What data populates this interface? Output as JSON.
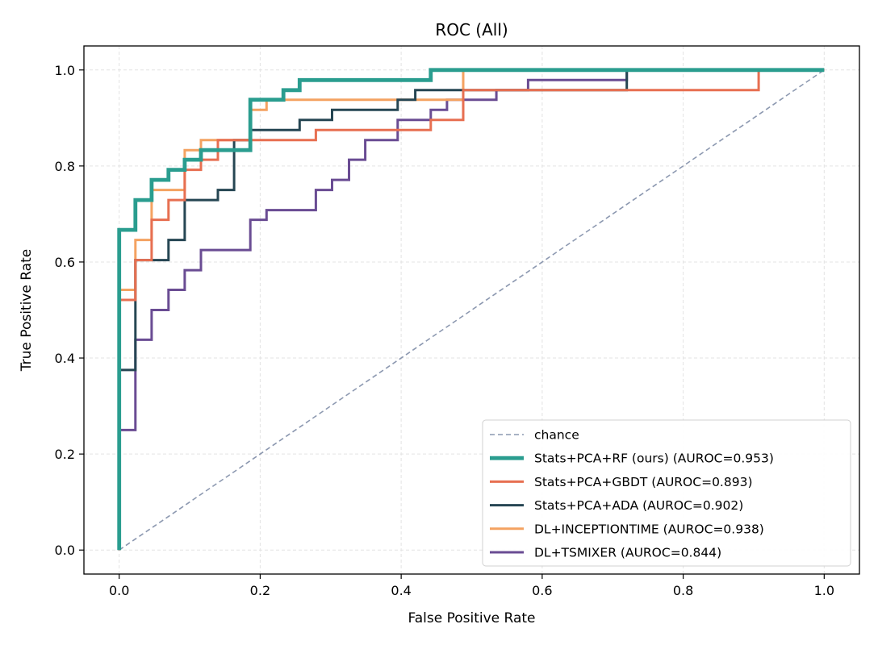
{
  "chart_data": {
    "type": "line",
    "title": "ROC (All)",
    "xlabel": "False Positive Rate",
    "ylabel": "True Positive Rate",
    "xlim": [
      -0.05,
      1.05
    ],
    "ylim": [
      -0.05,
      1.05
    ],
    "xticks": [
      0.0,
      0.2,
      0.4,
      0.6,
      0.8,
      1.0
    ],
    "yticks": [
      0.0,
      0.2,
      0.4,
      0.6,
      0.8,
      1.0
    ],
    "tick_labels_x": [
      "0.0",
      "0.2",
      "0.4",
      "0.6",
      "0.8",
      "1.0"
    ],
    "tick_labels_y": [
      "0.0",
      "0.2",
      "0.4",
      "0.6",
      "0.8",
      "1.0"
    ],
    "grid": true,
    "legend_position": "lower-right",
    "chance": {
      "name": "chance",
      "color": "#8c98b0",
      "x": [
        0,
        1
      ],
      "y": [
        0,
        1
      ]
    },
    "series": [
      {
        "name": "Stats+PCA+RF (ours) (AUROC=0.953)",
        "color": "#2a9d8f",
        "width": 4.8,
        "x": [
          0,
          0,
          0.023,
          0.023,
          0.046,
          0.046,
          0.07,
          0.07,
          0.093,
          0.093,
          0.116,
          0.116,
          0.186,
          0.186,
          0.233,
          0.233,
          0.256,
          0.256,
          0.442,
          0.442,
          1.0
        ],
        "y": [
          0,
          0.667,
          0.667,
          0.729,
          0.729,
          0.771,
          0.771,
          0.792,
          0.792,
          0.813,
          0.813,
          0.833,
          0.833,
          0.938,
          0.938,
          0.958,
          0.958,
          0.979,
          0.979,
          1.0,
          1.0
        ]
      },
      {
        "name": "Stats+PCA+GBDT (AUROC=0.893)",
        "color": "#e76f51",
        "width": 3,
        "x": [
          0,
          0,
          0.023,
          0.023,
          0.046,
          0.046,
          0.07,
          0.07,
          0.093,
          0.093,
          0.116,
          0.116,
          0.14,
          0.14,
          0.186,
          0.186,
          0.279,
          0.279,
          0.442,
          0.442,
          0.488,
          0.488,
          0.72,
          0.72,
          0.907,
          0.907,
          1.0
        ],
        "y": [
          0,
          0.521,
          0.521,
          0.604,
          0.604,
          0.688,
          0.688,
          0.729,
          0.729,
          0.792,
          0.792,
          0.813,
          0.813,
          0.854,
          0.854,
          0.854,
          0.854,
          0.875,
          0.875,
          0.896,
          0.896,
          0.958,
          0.958,
          0.958,
          0.958,
          1.0,
          1.0
        ]
      },
      {
        "name": "Stats+PCA+ADA (AUROC=0.902)",
        "color": "#264653",
        "width": 3,
        "x": [
          0,
          0,
          0.023,
          0.023,
          0.07,
          0.07,
          0.093,
          0.093,
          0.14,
          0.14,
          0.163,
          0.163,
          0.186,
          0.186,
          0.256,
          0.256,
          0.302,
          0.302,
          0.395,
          0.395,
          0.42,
          0.42,
          0.488,
          0.488,
          0.72,
          0.72,
          1.0
        ],
        "y": [
          0,
          0.375,
          0.375,
          0.604,
          0.604,
          0.646,
          0.646,
          0.729,
          0.729,
          0.75,
          0.75,
          0.854,
          0.854,
          0.875,
          0.875,
          0.896,
          0.896,
          0.917,
          0.917,
          0.938,
          0.938,
          0.958,
          0.958,
          0.958,
          0.958,
          1.0,
          1.0
        ]
      },
      {
        "name": "DL+INCEPTIONTIME (AUROC=0.938)",
        "color": "#f4a261",
        "width": 3,
        "x": [
          0,
          0,
          0.023,
          0.023,
          0.046,
          0.046,
          0.07,
          0.07,
          0.093,
          0.093,
          0.116,
          0.116,
          0.186,
          0.186,
          0.209,
          0.209,
          0.488,
          0.488,
          1.0
        ],
        "y": [
          0,
          0.542,
          0.542,
          0.646,
          0.646,
          0.75,
          0.75,
          0.75,
          0.75,
          0.833,
          0.833,
          0.854,
          0.854,
          0.917,
          0.917,
          0.938,
          0.938,
          1.0,
          1.0
        ]
      },
      {
        "name": "DL+TSMIXER (AUROC=0.844)",
        "color": "#6a4c93",
        "width": 3,
        "x": [
          0,
          0,
          0.023,
          0.023,
          0.046,
          0.046,
          0.07,
          0.07,
          0.093,
          0.093,
          0.116,
          0.116,
          0.186,
          0.186,
          0.209,
          0.209,
          0.279,
          0.279,
          0.302,
          0.302,
          0.326,
          0.326,
          0.349,
          0.349,
          0.395,
          0.395,
          0.442,
          0.442,
          0.465,
          0.465,
          0.488,
          0.488,
          0.535,
          0.535,
          0.58,
          0.58,
          0.72,
          0.72,
          1.0
        ],
        "y": [
          0,
          0.25,
          0.25,
          0.438,
          0.438,
          0.5,
          0.5,
          0.542,
          0.542,
          0.583,
          0.583,
          0.625,
          0.625,
          0.688,
          0.688,
          0.708,
          0.708,
          0.75,
          0.75,
          0.771,
          0.771,
          0.813,
          0.813,
          0.854,
          0.854,
          0.896,
          0.896,
          0.917,
          0.917,
          0.938,
          0.938,
          0.938,
          0.938,
          0.958,
          0.958,
          0.979,
          0.979,
          1.0,
          1.0
        ]
      }
    ]
  }
}
